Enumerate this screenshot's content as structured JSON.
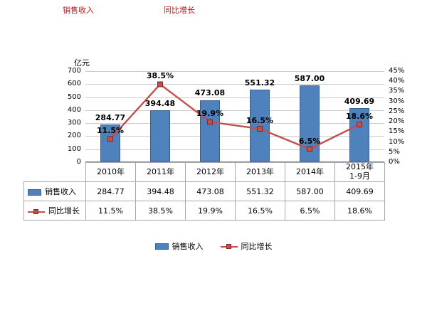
{
  "header": {
    "remnant_left": "销售收入",
    "remnant_right": "同比增长"
  },
  "chart_data": {
    "type": "bar",
    "subtype": "bar+line combo",
    "unit_label": "亿元",
    "categories": [
      "2010年",
      "2011年",
      "2012年",
      "2013年",
      "2014年",
      "2015年\n1-9月"
    ],
    "series": [
      {
        "name": "销售收入",
        "type": "bar",
        "values": [
          284.77,
          394.48,
          473.08,
          551.32,
          587.0,
          409.69
        ],
        "axis": "left"
      },
      {
        "name": "同比增长",
        "type": "line",
        "values": [
          11.5,
          38.5,
          19.9,
          16.5,
          6.5,
          18.6
        ],
        "axis": "right"
      }
    ],
    "values": [
      284.77,
      394.48,
      473.08,
      551.32,
      587.0,
      409.69
    ],
    "values_display": [
      "284.77",
      "394.48",
      "473.08",
      "551.32",
      "587.00",
      "409.69"
    ],
    "growth": [
      11.5,
      38.5,
      19.9,
      16.5,
      6.5,
      18.6
    ],
    "growth_display": [
      "11.5%",
      "38.5%",
      "19.9%",
      "16.5%",
      "6.5%",
      "18.6%"
    ],
    "series_labels": {
      "sales": "销售收入",
      "growth": "同比增长"
    },
    "left_axis": {
      "min": 0,
      "max": 700,
      "step": 100
    },
    "right_axis": {
      "min": 0,
      "max": 45,
      "step": 5,
      "suffix": "%"
    },
    "bar_color": "#4f81bd",
    "bar_border_color": "#39618f",
    "line_color": "#c0504d",
    "gridlines": true,
    "legend_position": "bottom",
    "data_table_shown": true
  }
}
